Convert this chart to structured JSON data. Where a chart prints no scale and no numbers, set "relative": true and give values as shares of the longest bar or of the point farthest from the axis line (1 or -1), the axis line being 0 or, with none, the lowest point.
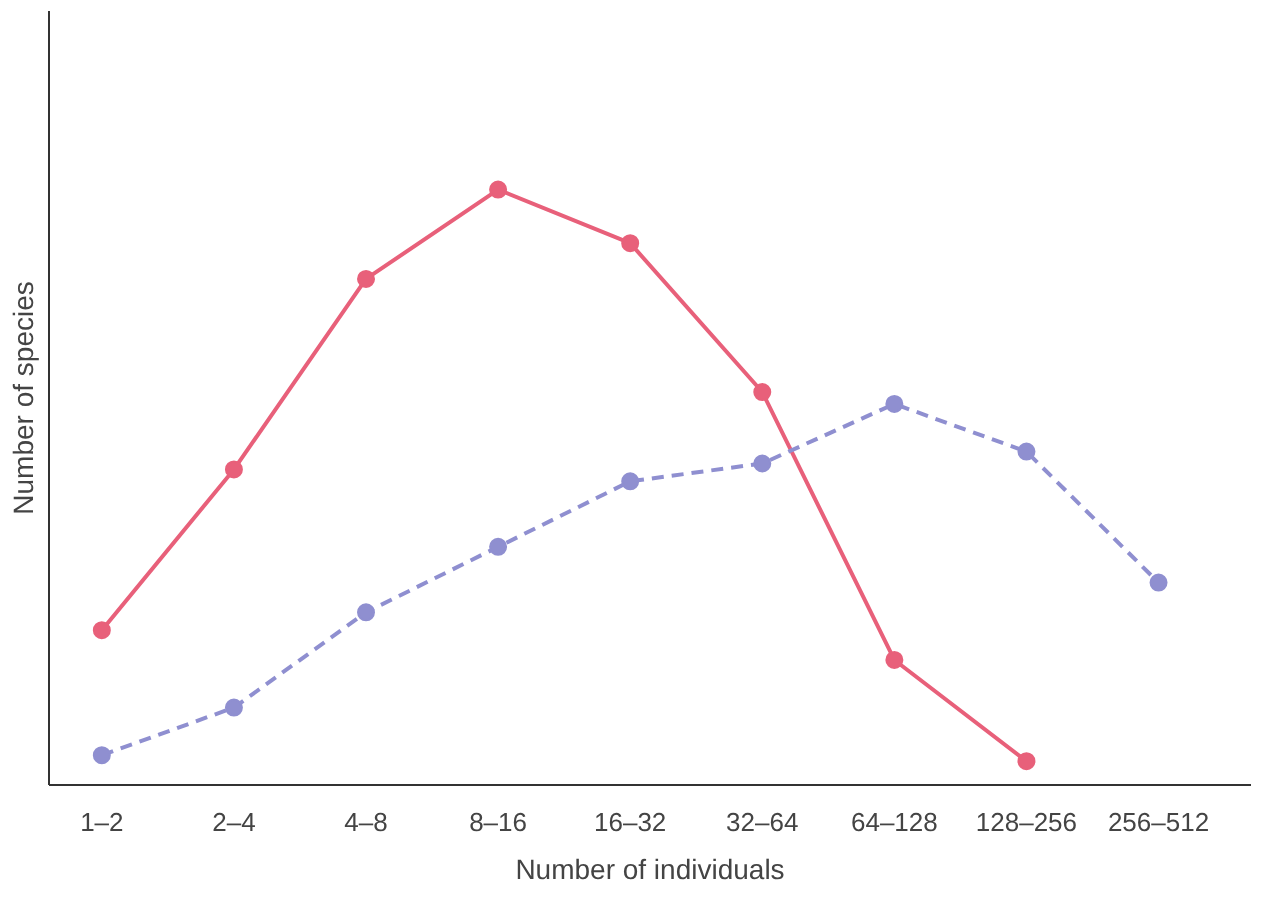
{
  "chart_data": {
    "type": "line",
    "xlabel": "Number of individuals",
    "ylabel": "Number of species",
    "relative": true,
    "grid": false,
    "marker": "circle",
    "categories": [
      "1–2",
      "2–4",
      "4–8",
      "8–16",
      "16–32",
      "32–64",
      "64–128",
      "128–256",
      "256–512"
    ],
    "series": [
      {
        "color": "#e8607a",
        "line_style": "solid",
        "values": [
          0.26,
          0.53,
          0.85,
          1,
          0.91,
          0.66,
          0.21,
          0.04,
          null
        ]
      },
      {
        "color": "#8f8fd0",
        "line_style": "dashed",
        "values": [
          0.05,
          0.13,
          0.29,
          0.4,
          0.51,
          0.54,
          0.64,
          0.56,
          0.34
        ]
      }
    ]
  }
}
